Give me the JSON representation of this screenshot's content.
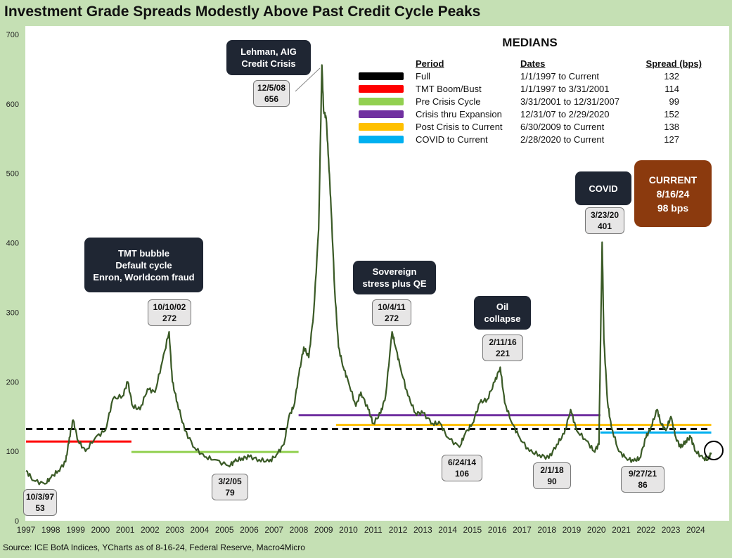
{
  "title": "Investment Grade Spreads Modestly Above Past Credit Cycle Peaks",
  "source": "Source: ICE BofA Indices, YCharts as of 8-16-24, Federal Reserve, Macro4Micro",
  "colors": {
    "page_bg": "#c5e0b4",
    "plot_bg": "#ffffff",
    "line": "#3a5a26",
    "callout_bg": "#1f2633",
    "current_bg": "#8b3a0e"
  },
  "medians": {
    "title": "MEDIANS",
    "headers": {
      "period": "Period",
      "dates": "Dates",
      "spread": "Spread (bps)"
    },
    "rows": [
      {
        "period": "Full",
        "dates": "1/1/1997  to Current",
        "spread": "132",
        "color": "#000000",
        "style": "dashed"
      },
      {
        "period": "TMT  Boom/Bust",
        "dates": "1/1/1997 to 3/31/2001",
        "spread": "114",
        "color": "#ff0000",
        "style": "solid"
      },
      {
        "period": "Pre Crisis Cycle",
        "dates": "3/31/2001  to 12/31/2007",
        "spread": "99",
        "color": "#92d050",
        "style": "solid"
      },
      {
        "period": "Crisis thru Expansion",
        "dates": "12/31/07 to 2/29/2020",
        "spread": "152",
        "color": "#7030a0",
        "style": "solid"
      },
      {
        "period": "Post Crisis to Current",
        "dates": "6/30/2009  to Current",
        "spread": "138",
        "color": "#ffc000",
        "style": "solid"
      },
      {
        "period": "COVID to Current",
        "dates": "2/28/2020  to Current",
        "spread": "127",
        "color": "#00b0f0",
        "style": "solid"
      }
    ]
  },
  "current": {
    "line1": "CURRENT",
    "line2": "8/16/24",
    "line3": "98 bps"
  },
  "callouts": [
    {
      "id": "lehman",
      "l1": "Lehman, AIG",
      "l2": "Credit Crisis",
      "l3": ""
    },
    {
      "id": "tmt",
      "l1": "TMT bubble",
      "l2": "Default cycle",
      "l3": "Enron, Worldcom fraud"
    },
    {
      "id": "sovereign",
      "l1": "Sovereign",
      "l2": "stress plus QE",
      "l3": ""
    },
    {
      "id": "oil",
      "l1": "Oil",
      "l2": "collapse",
      "l3": ""
    },
    {
      "id": "covid",
      "l1": "COVID",
      "l2": "",
      "l3": ""
    }
  ],
  "point_labels": [
    {
      "date": "10/3/97",
      "value": "53"
    },
    {
      "date": "10/10/02",
      "value": "272"
    },
    {
      "date": "3/2/05",
      "value": "79"
    },
    {
      "date": "12/5/08",
      "value": "656"
    },
    {
      "date": "10/4/11",
      "value": "272"
    },
    {
      "date": "6/24/14",
      "value": "106"
    },
    {
      "date": "2/11/16",
      "value": "221"
    },
    {
      "date": "2/1/18",
      "value": "90"
    },
    {
      "date": "3/23/20",
      "value": "401"
    },
    {
      "date": "9/27/21",
      "value": "86"
    }
  ],
  "chart_data": {
    "type": "line",
    "title": "Investment Grade Spreads Modestly Above Past Credit Cycle Peaks",
    "xlabel": "",
    "ylabel": "",
    "xlim": [
      1997,
      2024.7
    ],
    "ylim": [
      0,
      700
    ],
    "yticks": [
      0,
      100,
      200,
      300,
      400,
      500,
      600,
      700
    ],
    "xticks": [
      "1997",
      "1998",
      "1999",
      "2000",
      "2001",
      "2002",
      "2003",
      "2004",
      "2005",
      "2006",
      "2007",
      "2008",
      "2009",
      "2010",
      "2011",
      "2012",
      "2013",
      "2014",
      "2015",
      "2016",
      "2017",
      "2018",
      "2019",
      "2020",
      "2021",
      "2022",
      "2023",
      "2024"
    ],
    "grid": false,
    "series": [
      {
        "name": "",
        "x": [
          1997.0,
          1997.3,
          1997.76,
          1998.0,
          1998.3,
          1998.6,
          1998.75,
          1998.9,
          1999.1,
          1999.4,
          1999.8,
          2000.2,
          2000.5,
          2000.9,
          2001.1,
          2001.3,
          2001.6,
          2001.9,
          2002.2,
          2002.5,
          2002.77,
          2002.9,
          2003.1,
          2003.4,
          2003.8,
          2004.2,
          2004.6,
          2005.17,
          2005.4,
          2005.7,
          2006.0,
          2006.4,
          2006.8,
          2007.1,
          2007.4,
          2007.6,
          2007.8,
          2008.0,
          2008.2,
          2008.4,
          2008.6,
          2008.8,
          2008.93,
          2009.0,
          2009.1,
          2009.2,
          2009.3,
          2009.45,
          2009.6,
          2009.8,
          2010.0,
          2010.3,
          2010.5,
          2010.8,
          2011.0,
          2011.3,
          2011.5,
          2011.76,
          2011.9,
          2012.1,
          2012.4,
          2012.7,
          2013.0,
          2013.4,
          2013.7,
          2014.0,
          2014.48,
          2014.7,
          2015.0,
          2015.3,
          2015.6,
          2015.9,
          2016.12,
          2016.3,
          2016.6,
          2016.9,
          2017.3,
          2017.7,
          2018.08,
          2018.4,
          2018.7,
          2018.96,
          2019.2,
          2019.6,
          2019.9,
          2020.1,
          2020.23,
          2020.3,
          2020.45,
          2020.6,
          2020.9,
          2021.2,
          2021.5,
          2021.74,
          2022.0,
          2022.2,
          2022.45,
          2022.6,
          2022.8,
          2023.0,
          2023.2,
          2023.4,
          2023.6,
          2023.8,
          2024.0,
          2024.3,
          2024.5,
          2024.63
        ],
        "values": [
          72,
          58,
          53,
          62,
          72,
          85,
          120,
          145,
          115,
          100,
          120,
          130,
          175,
          180,
          200,
          165,
          160,
          190,
          185,
          230,
          272,
          200,
          170,
          130,
          105,
          92,
          88,
          79,
          85,
          90,
          92,
          88,
          85,
          95,
          110,
          150,
          165,
          210,
          250,
          235,
          300,
          420,
          656,
          590,
          580,
          520,
          450,
          330,
          250,
          220,
          200,
          165,
          185,
          160,
          140,
          155,
          180,
          272,
          250,
          220,
          180,
          155,
          155,
          140,
          140,
          120,
          106,
          125,
          140,
          170,
          175,
          200,
          221,
          170,
          140,
          120,
          100,
          95,
          90,
          110,
          125,
          160,
          130,
          115,
          100,
          110,
          401,
          260,
          170,
          135,
          100,
          90,
          86,
          90,
          120,
          135,
          160,
          140,
          130,
          150,
          120,
          105,
          115,
          120,
          100,
          90,
          88,
          98
        ]
      }
    ],
    "median_lines": [
      {
        "name": "Full",
        "x0": 1997.0,
        "x1": 2024.63,
        "value": 132
      },
      {
        "name": "TMT  Boom/Bust",
        "x0": 1997.0,
        "x1": 2001.25,
        "value": 114
      },
      {
        "name": "Pre Crisis Cycle",
        "x0": 2001.25,
        "x1": 2007.99,
        "value": 99
      },
      {
        "name": "Crisis thru Expansion",
        "x0": 2007.99,
        "x1": 2020.16,
        "value": 152
      },
      {
        "name": "Post Crisis to Current",
        "x0": 2009.5,
        "x1": 2024.63,
        "value": 138
      },
      {
        "name": "COVID to Current",
        "x0": 2020.16,
        "x1": 2024.63,
        "value": 127
      }
    ]
  }
}
